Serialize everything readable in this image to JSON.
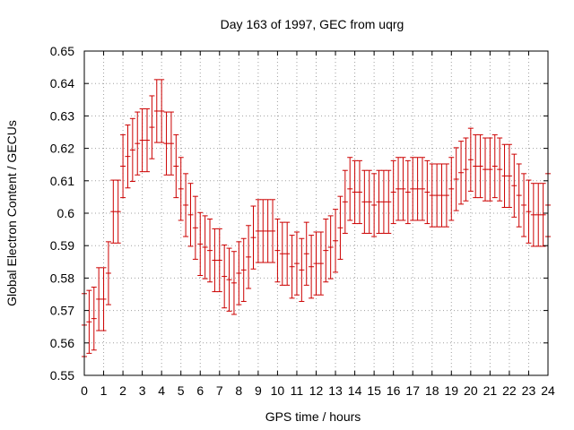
{
  "chart_data": {
    "type": "line",
    "title": "Day 163 of 1997, GEC from uqrg",
    "xlabel": "GPS time / hours",
    "ylabel": "Global Electron Content / GECUs",
    "xlim": [
      0,
      24
    ],
    "ylim": [
      0.55,
      0.65
    ],
    "xticks": [
      0,
      1,
      2,
      3,
      4,
      5,
      6,
      7,
      8,
      9,
      10,
      11,
      12,
      13,
      14,
      15,
      16,
      17,
      18,
      19,
      20,
      21,
      22,
      23,
      24
    ],
    "yticks": [
      "0.55",
      "0.56",
      "0.57",
      "0.58",
      "0.59",
      "0.6",
      "0.61",
      "0.62",
      "0.63",
      "0.64",
      "0.65"
    ],
    "grid": true,
    "colors": {
      "series": "#cc0000",
      "grid": "#a0a0a0",
      "axis": "#000000"
    },
    "series": [
      {
        "name": "GEC",
        "error_bar_half_width": 0.0097,
        "x": [
          0.0,
          0.25,
          0.5,
          0.75,
          1.0,
          1.25,
          1.5,
          1.75,
          2.0,
          2.25,
          2.5,
          2.75,
          3.0,
          3.25,
          3.5,
          3.75,
          4.0,
          4.25,
          4.5,
          4.75,
          5.0,
          5.25,
          5.5,
          5.75,
          6.0,
          6.25,
          6.5,
          6.75,
          7.0,
          7.25,
          7.5,
          7.75,
          8.0,
          8.25,
          8.5,
          8.75,
          9.0,
          9.25,
          9.5,
          9.75,
          10.0,
          10.25,
          10.5,
          10.75,
          11.0,
          11.25,
          11.5,
          11.75,
          12.0,
          12.25,
          12.5,
          12.75,
          13.0,
          13.25,
          13.5,
          13.75,
          14.0,
          14.25,
          14.5,
          14.75,
          15.0,
          15.25,
          15.5,
          15.75,
          16.0,
          16.25,
          16.5,
          16.75,
          17.0,
          17.25,
          17.5,
          17.75,
          18.0,
          18.25,
          18.5,
          18.75,
          19.0,
          19.25,
          19.5,
          19.75,
          20.0,
          20.25,
          20.5,
          20.75,
          21.0,
          21.25,
          21.5,
          21.75,
          22.0,
          22.25,
          22.5,
          22.75,
          23.0,
          23.25,
          23.5,
          23.75,
          24.0
        ],
        "y": [
          0.5655,
          0.5665,
          0.5675,
          0.5735,
          0.5735,
          0.5815,
          0.6005,
          0.6005,
          0.6145,
          0.6175,
          0.6195,
          0.6215,
          0.6225,
          0.6225,
          0.6265,
          0.6315,
          0.6315,
          0.6215,
          0.6215,
          0.6145,
          0.6075,
          0.6025,
          0.5995,
          0.5955,
          0.5905,
          0.5895,
          0.5885,
          0.5855,
          0.5855,
          0.5805,
          0.5795,
          0.5785,
          0.5815,
          0.5825,
          0.5865,
          0.5925,
          0.5945,
          0.5945,
          0.5945,
          0.5945,
          0.5885,
          0.5875,
          0.5875,
          0.5835,
          0.5845,
          0.5825,
          0.5875,
          0.5835,
          0.5845,
          0.5845,
          0.5885,
          0.5895,
          0.5915,
          0.5955,
          0.6035,
          0.6075,
          0.6065,
          0.6065,
          0.6035,
          0.6035,
          0.6025,
          0.6035,
          0.6035,
          0.6035,
          0.6065,
          0.6075,
          0.6075,
          0.6065,
          0.6075,
          0.6075,
          0.6075,
          0.6065,
          0.6055,
          0.6055,
          0.6055,
          0.6055,
          0.6075,
          0.6105,
          0.6125,
          0.6135,
          0.6165,
          0.6145,
          0.6145,
          0.6135,
          0.6135,
          0.6145,
          0.6135,
          0.6115,
          0.6115,
          0.6085,
          0.6055,
          0.6025,
          0.6005,
          0.5995,
          0.5995,
          0.5995,
          0.6025
        ]
      }
    ]
  }
}
